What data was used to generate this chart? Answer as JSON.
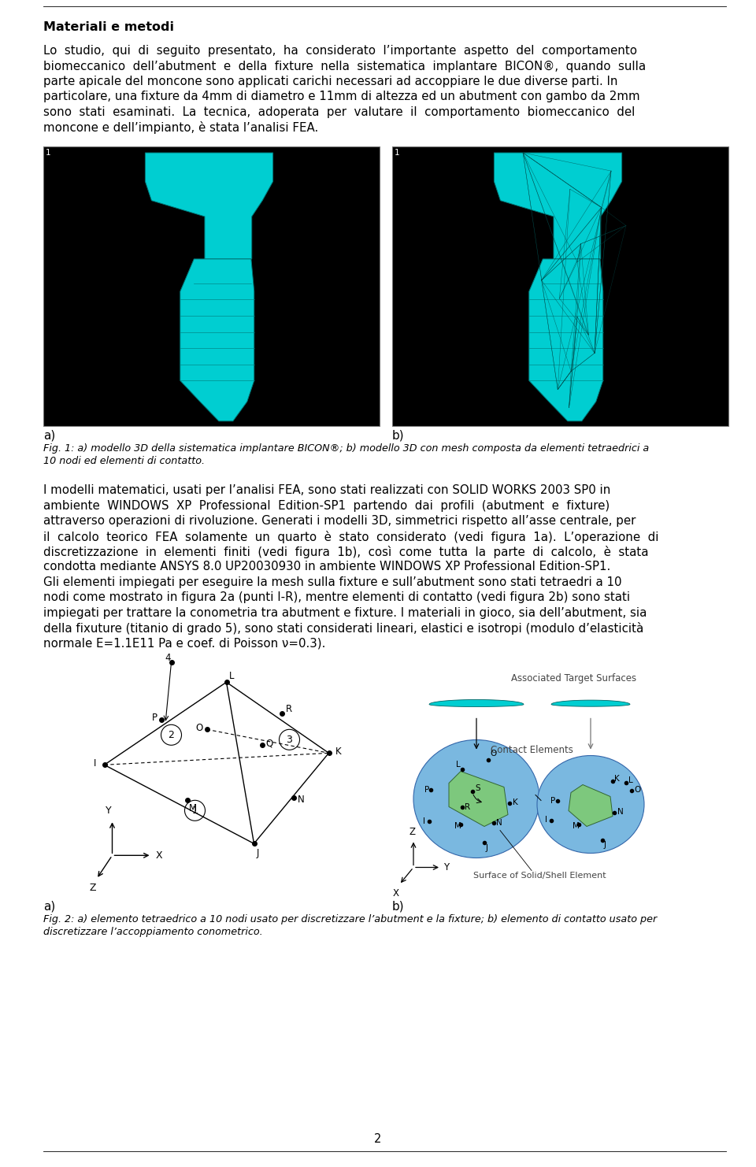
{
  "title_section": "Materiali e metodi",
  "paragraph1_lines": [
    "Lo  studio,  qui  di  seguito  presentato,  ha  considerato  l’importante  aspetto  del  comportamento",
    "biomeccanico  dell’abutment  e  della  fixture  nella  sistematica  implantare  BICON®,  quando  sulla",
    "parte apicale del moncone sono applicati carichi necessari ad accoppiare le due diverse parti. In",
    "particolare, una fixture da 4mm di diametro e 11mm di altezza ed un abutment con gambo da 2mm",
    "sono  stati  esaminati.  La  tecnica,  adoperata  per  valutare  il  comportamento  biomeccanico  del",
    "moncone e dell’impianto, è stata l’analisi FEA."
  ],
  "fig1_caption_lines": [
    "Fig. 1: a) modello 3D della sistematica implantare BICON®; b) modello 3D con mesh composta da elementi tetraedrici a",
    "10 nodi ed elementi di contatto."
  ],
  "paragraph2_lines": [
    "I modelli matematici, usati per l’analisi FEA, sono stati realizzati con SOLID WORKS 2003 SP0 in",
    "ambiente  WINDOWS  XP  Professional  Edition-SP1  partendo  dai  profili  (abutment  e  fixture)",
    "attraverso operazioni di rivoluzione. Generati i modelli 3D, simmetrici rispetto all’asse centrale, per",
    "il  calcolo  teorico  FEA  solamente  un  quarto  è  stato  considerato  (vedi  figura  1a).  L’operazione  di",
    "discretizzazione  in  elementi  finiti  (vedi  figura  1b),  così  come  tutta  la  parte  di  calcolo,  è  stata",
    "condotta mediante ANSYS 8.0 UP20030930 in ambiente WINDOWS XP Professional Edition-SP1.",
    "Gli elementi impiegati per eseguire la mesh sulla fixture e sull’abutment sono stati tetraedri a 10",
    "nodi come mostrato in figura 2a (punti I-R), mentre elementi di contatto (vedi figura 2b) sono stati",
    "impiegati per trattare la conometria tra abutment e fixture. I materiali in gioco, sia dell’abutment, sia",
    "della fixuture (titanio di grado 5), sono stati considerati lineari, elastici e isotropi (modulo d’elasticità",
    "normale E=1.1E11 Pa e coef. di Poisson ν=0.3)."
  ],
  "fig2_caption_lines": [
    "Fig. 2: a) elemento tetraedrico a 10 nodi usato per discretizzare l’abutment e la fixture; b) elemento di contatto usato per",
    "discretizzare l’accoppiamento conometrico."
  ],
  "page_number": "2",
  "bg_color": "#ffffff",
  "cyan_color": "#00CED1",
  "cyan_dark": "#00A0A0",
  "blue_color": "#6EB4D8",
  "green_color": "#7DC87D"
}
